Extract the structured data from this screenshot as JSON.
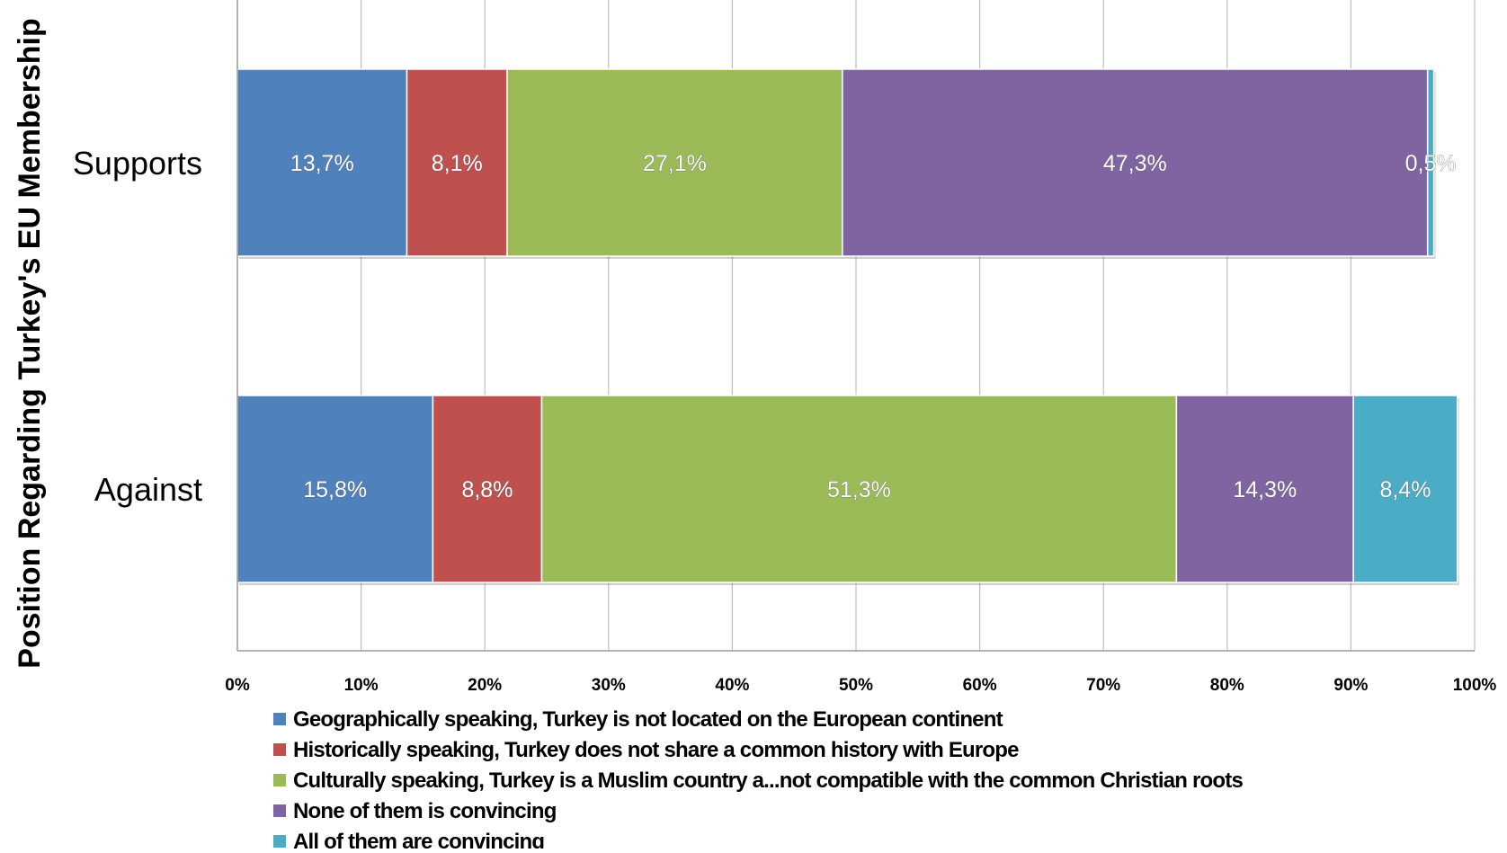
{
  "chart_data": {
    "type": "bar",
    "orientation": "horizontal",
    "stacked": true,
    "categories": [
      "Supports",
      "Against"
    ],
    "ylabel": "Position Regarding Turkey's EU Membership",
    "xlabel": "",
    "xlim": [
      0,
      100
    ],
    "x_ticks": [
      "0%",
      "10%",
      "20%",
      "30%",
      "40%",
      "50%",
      "60%",
      "70%",
      "80%",
      "90%",
      "100%"
    ],
    "grid": "vertical",
    "legend_position": "bottom",
    "series": [
      {
        "name": "Geographically speaking, Turkey is not located on the European continent",
        "color": "#4F81BD",
        "values": [
          13.7,
          15.8
        ],
        "labels": [
          "13,7%",
          "15,8%"
        ]
      },
      {
        "name": "Historically speaking, Turkey does not share a common history with Europe",
        "color": "#C0504D",
        "values": [
          8.1,
          8.8
        ],
        "labels": [
          "8,1%",
          "8,8%"
        ]
      },
      {
        "name": "Culturally speaking, Turkey is a Muslim country a...not compatible with the common Christian roots",
        "color": "#9BBB59",
        "values": [
          27.1,
          51.3
        ],
        "labels": [
          "27,1%",
          "51,3%"
        ]
      },
      {
        "name": "None of them is convincing",
        "color": "#8064A2",
        "values": [
          47.3,
          14.3
        ],
        "labels": [
          "47,3%",
          "14,3%"
        ]
      },
      {
        "name": "All of them are convincing",
        "color": "#4BACC6",
        "values": [
          0.5,
          8.4
        ],
        "labels": [
          "0,5%",
          "8,4%"
        ]
      }
    ]
  }
}
